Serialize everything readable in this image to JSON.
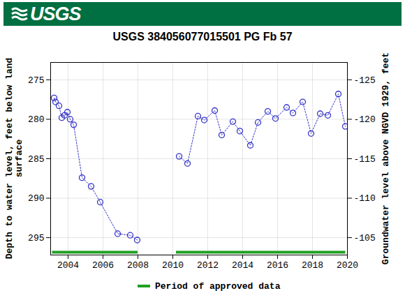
{
  "chart_data": {
    "type": "line",
    "logo_text": "USGS",
    "title": "USGS 384056077015501 PG Fb  57",
    "y_label": [
      "Depth to water level, feet below land",
      "surface"
    ],
    "y2_label": "Groundwater level above NGVD 1929, feet",
    "x": [
      2003.2,
      2003.28,
      2003.48,
      2003.64,
      2003.8,
      2003.96,
      2004.12,
      2004.32,
      2004.8,
      2005.32,
      2005.84,
      2006.84,
      2007.56,
      2007.96,
      null,
      2010.36,
      2010.84,
      2011.44,
      2011.8,
      2012.4,
      2012.8,
      2013.44,
      2013.84,
      2014.44,
      2014.88,
      2015.44,
      2015.88,
      2016.52,
      2016.88,
      2017.44,
      2017.92,
      2018.44,
      2018.88,
      2019.48,
      2019.88
    ],
    "values": [
      277.3,
      277.8,
      278.3,
      279.8,
      279.5,
      279.1,
      280.0,
      280.7,
      287.4,
      288.5,
      290.5,
      294.5,
      294.7,
      295.3,
      null,
      284.7,
      285.6,
      279.6,
      280.1,
      278.9,
      282.0,
      280.3,
      281.5,
      283.3,
      280.4,
      279.0,
      279.9,
      278.5,
      279.2,
      277.8,
      281.8,
      279.3,
      279.5,
      276.8,
      280.9
    ],
    "color": "#3232c8",
    "marker": "circle",
    "line_style": "dotted",
    "xlim": [
      2003,
      2020
    ],
    "xticks": [
      2004,
      2006,
      2008,
      2010,
      2012,
      2014,
      2016,
      2018,
      2020
    ],
    "ylim": [
      272.8,
      297.2
    ],
    "yticks": [
      275,
      280,
      285,
      290,
      295
    ],
    "y2lim": [
      -102.8,
      -127.2
    ],
    "y2ticks": [
      -105,
      -110,
      -115,
      -120,
      -125
    ],
    "grid": true,
    "approved_periods": {
      "name": "Period of approved data",
      "color": "#22a022",
      "ranges": [
        [
          2003.1,
          2008.0
        ],
        [
          2010.2,
          2019.9
        ]
      ]
    }
  }
}
